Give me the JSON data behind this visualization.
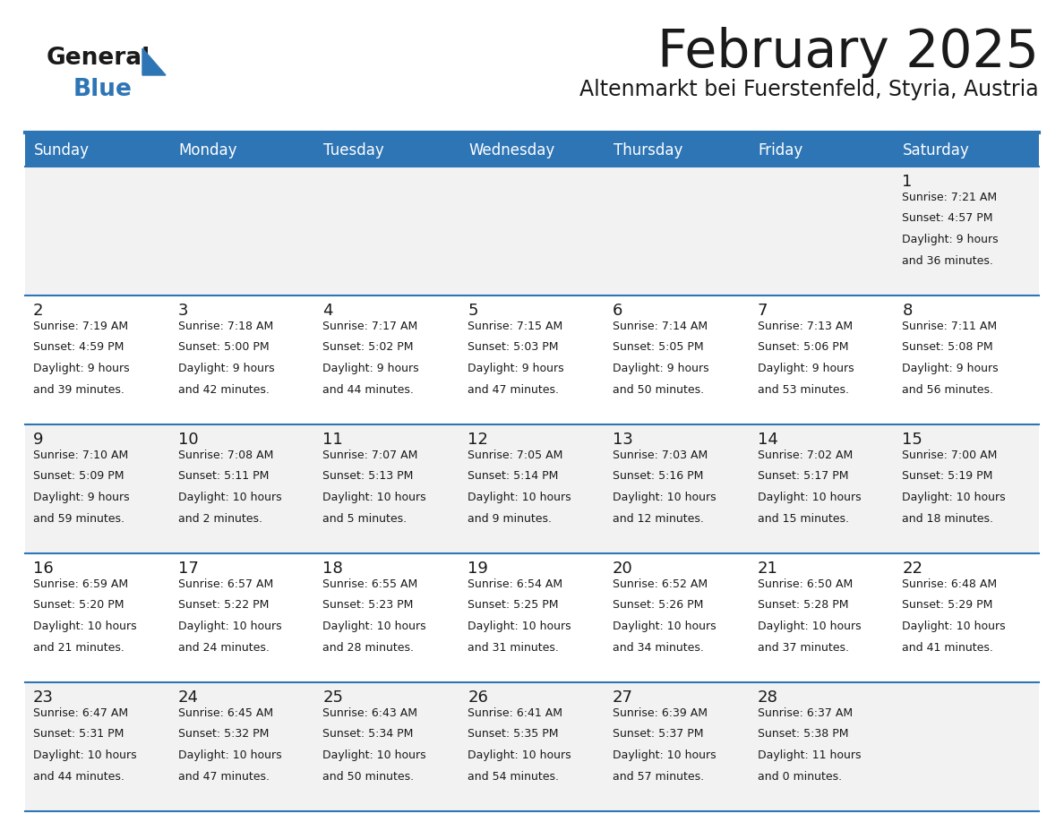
{
  "title": "February 2025",
  "subtitle": "Altenmarkt bei Fuerstenfeld, Styria, Austria",
  "header_bg": "#2E75B6",
  "header_fg": "#FFFFFF",
  "day_names": [
    "Sunday",
    "Monday",
    "Tuesday",
    "Wednesday",
    "Thursday",
    "Friday",
    "Saturday"
  ],
  "cell_bg_odd": "#F2F2F2",
  "cell_bg_even": "#FFFFFF",
  "separator_color": "#2E75B6",
  "text_color": "#1A1A1A",
  "logo_black": "#1A1A1A",
  "logo_blue": "#2E75B6",
  "days": [
    {
      "day": 1,
      "col": 6,
      "row": 0,
      "sunrise": "7:21 AM",
      "sunset": "4:57 PM",
      "daylight": "9 hours and 36 minutes."
    },
    {
      "day": 2,
      "col": 0,
      "row": 1,
      "sunrise": "7:19 AM",
      "sunset": "4:59 PM",
      "daylight": "9 hours and 39 minutes."
    },
    {
      "day": 3,
      "col": 1,
      "row": 1,
      "sunrise": "7:18 AM",
      "sunset": "5:00 PM",
      "daylight": "9 hours and 42 minutes."
    },
    {
      "day": 4,
      "col": 2,
      "row": 1,
      "sunrise": "7:17 AM",
      "sunset": "5:02 PM",
      "daylight": "9 hours and 44 minutes."
    },
    {
      "day": 5,
      "col": 3,
      "row": 1,
      "sunrise": "7:15 AM",
      "sunset": "5:03 PM",
      "daylight": "9 hours and 47 minutes."
    },
    {
      "day": 6,
      "col": 4,
      "row": 1,
      "sunrise": "7:14 AM",
      "sunset": "5:05 PM",
      "daylight": "9 hours and 50 minutes."
    },
    {
      "day": 7,
      "col": 5,
      "row": 1,
      "sunrise": "7:13 AM",
      "sunset": "5:06 PM",
      "daylight": "9 hours and 53 minutes."
    },
    {
      "day": 8,
      "col": 6,
      "row": 1,
      "sunrise": "7:11 AM",
      "sunset": "5:08 PM",
      "daylight": "9 hours and 56 minutes."
    },
    {
      "day": 9,
      "col": 0,
      "row": 2,
      "sunrise": "7:10 AM",
      "sunset": "5:09 PM",
      "daylight": "9 hours and 59 minutes."
    },
    {
      "day": 10,
      "col": 1,
      "row": 2,
      "sunrise": "7:08 AM",
      "sunset": "5:11 PM",
      "daylight": "10 hours and 2 minutes."
    },
    {
      "day": 11,
      "col": 2,
      "row": 2,
      "sunrise": "7:07 AM",
      "sunset": "5:13 PM",
      "daylight": "10 hours and 5 minutes."
    },
    {
      "day": 12,
      "col": 3,
      "row": 2,
      "sunrise": "7:05 AM",
      "sunset": "5:14 PM",
      "daylight": "10 hours and 9 minutes."
    },
    {
      "day": 13,
      "col": 4,
      "row": 2,
      "sunrise": "7:03 AM",
      "sunset": "5:16 PM",
      "daylight": "10 hours and 12 minutes."
    },
    {
      "day": 14,
      "col": 5,
      "row": 2,
      "sunrise": "7:02 AM",
      "sunset": "5:17 PM",
      "daylight": "10 hours and 15 minutes."
    },
    {
      "day": 15,
      "col": 6,
      "row": 2,
      "sunrise": "7:00 AM",
      "sunset": "5:19 PM",
      "daylight": "10 hours and 18 minutes."
    },
    {
      "day": 16,
      "col": 0,
      "row": 3,
      "sunrise": "6:59 AM",
      "sunset": "5:20 PM",
      "daylight": "10 hours and 21 minutes."
    },
    {
      "day": 17,
      "col": 1,
      "row": 3,
      "sunrise": "6:57 AM",
      "sunset": "5:22 PM",
      "daylight": "10 hours and 24 minutes."
    },
    {
      "day": 18,
      "col": 2,
      "row": 3,
      "sunrise": "6:55 AM",
      "sunset": "5:23 PM",
      "daylight": "10 hours and 28 minutes."
    },
    {
      "day": 19,
      "col": 3,
      "row": 3,
      "sunrise": "6:54 AM",
      "sunset": "5:25 PM",
      "daylight": "10 hours and 31 minutes."
    },
    {
      "day": 20,
      "col": 4,
      "row": 3,
      "sunrise": "6:52 AM",
      "sunset": "5:26 PM",
      "daylight": "10 hours and 34 minutes."
    },
    {
      "day": 21,
      "col": 5,
      "row": 3,
      "sunrise": "6:50 AM",
      "sunset": "5:28 PM",
      "daylight": "10 hours and 37 minutes."
    },
    {
      "day": 22,
      "col": 6,
      "row": 3,
      "sunrise": "6:48 AM",
      "sunset": "5:29 PM",
      "daylight": "10 hours and 41 minutes."
    },
    {
      "day": 23,
      "col": 0,
      "row": 4,
      "sunrise": "6:47 AM",
      "sunset": "5:31 PM",
      "daylight": "10 hours and 44 minutes."
    },
    {
      "day": 24,
      "col": 1,
      "row": 4,
      "sunrise": "6:45 AM",
      "sunset": "5:32 PM",
      "daylight": "10 hours and 47 minutes."
    },
    {
      "day": 25,
      "col": 2,
      "row": 4,
      "sunrise": "6:43 AM",
      "sunset": "5:34 PM",
      "daylight": "10 hours and 50 minutes."
    },
    {
      "day": 26,
      "col": 3,
      "row": 4,
      "sunrise": "6:41 AM",
      "sunset": "5:35 PM",
      "daylight": "10 hours and 54 minutes."
    },
    {
      "day": 27,
      "col": 4,
      "row": 4,
      "sunrise": "6:39 AM",
      "sunset": "5:37 PM",
      "daylight": "10 hours and 57 minutes."
    },
    {
      "day": 28,
      "col": 5,
      "row": 4,
      "sunrise": "6:37 AM",
      "sunset": "5:38 PM",
      "daylight": "11 hours and 0 minutes."
    }
  ]
}
